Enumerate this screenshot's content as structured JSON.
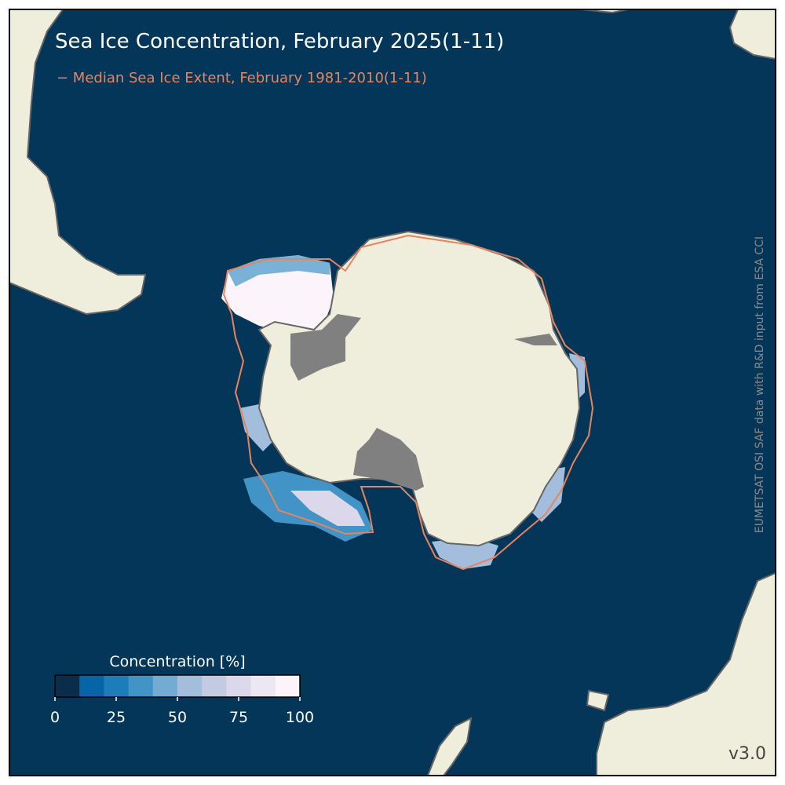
{
  "title": "Sea Ice Concentration, February 2025(1-11)",
  "median_legend": "− Median Sea Ice Extent, February 1981-2010(1-11)",
  "colorbar": {
    "label": "Concentration [%]",
    "lim": [
      0,
      100
    ],
    "ticks": [
      0,
      25,
      50,
      75,
      100
    ],
    "colors": [
      "#0b2d4c",
      "#0565a6",
      "#1c7dba",
      "#4394c6",
      "#73abd3",
      "#a2bedc",
      "#c3cbe3",
      "#dbd8eb",
      "#ece7f3",
      "#fbf4fa"
    ]
  },
  "credit": "EUMETSAT OSI SAF data with R&D input from ESA CCI",
  "version": "v3.0"
}
